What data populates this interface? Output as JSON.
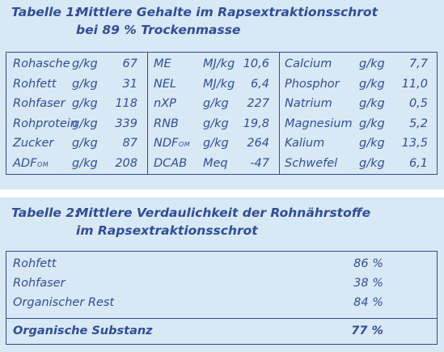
{
  "table1": {
    "label": "Tabelle 1:",
    "title_line1": "Mittlere Gehalte im Rapsextraktionsschrot",
    "title_line2": "bei 89 % Trockenmasse",
    "col1": [
      {
        "name": "Rohasche",
        "sub": "",
        "unit": "g/kg",
        "value": "67"
      },
      {
        "name": "Rohfett",
        "sub": "",
        "unit": "g/kg",
        "value": "31"
      },
      {
        "name": "Rohfaser",
        "sub": "",
        "unit": "g/kg",
        "value": "118"
      },
      {
        "name": "Rohprotein",
        "sub": "",
        "unit": "g/kg",
        "value": "339"
      },
      {
        "name": "Zucker",
        "sub": "",
        "unit": "g/kg",
        "value": "87"
      },
      {
        "name": "ADF",
        "sub": "OM",
        "unit": "g/kg",
        "value": "208"
      }
    ],
    "col2": [
      {
        "name": "ME",
        "sub": "",
        "unit": "MJ/kg",
        "value": "10,6"
      },
      {
        "name": "NEL",
        "sub": "",
        "unit": "MJ/kg",
        "value": "6,4"
      },
      {
        "name": "nXP",
        "sub": "",
        "unit": "g/kg",
        "value": "227"
      },
      {
        "name": "RNB",
        "sub": "",
        "unit": "g/kg",
        "value": "19,8"
      },
      {
        "name": "NDF",
        "sub": "OM",
        "unit": "g/kg",
        "value": "264"
      },
      {
        "name": "DCAB",
        "sub": "",
        "unit": "Meq",
        "value": "-47"
      }
    ],
    "col3": [
      {
        "name": "Calcium",
        "sub": "",
        "unit": "g/kg",
        "value": "7,7"
      },
      {
        "name": "Phosphor",
        "sub": "",
        "unit": "g/kg",
        "value": "11,0"
      },
      {
        "name": "Natrium",
        "sub": "",
        "unit": "g/kg",
        "value": "0,5"
      },
      {
        "name": "Magnesium",
        "sub": "",
        "unit": "g/kg",
        "value": "5,2"
      },
      {
        "name": "Kalium",
        "sub": "",
        "unit": "g/kg",
        "value": "13,5"
      },
      {
        "name": "Schwefel",
        "sub": "",
        "unit": "g/kg",
        "value": "6,1"
      }
    ]
  },
  "table2": {
    "label": "Tabelle 2:",
    "title_line1": "Mittlere Verdaulichkeit der Rohnährstoffe",
    "title_line2": "im Rapsextraktionsschrot",
    "rows": [
      {
        "name": "Rohfett",
        "value": "86 %"
      },
      {
        "name": "Rohfaser",
        "value": "38 %"
      },
      {
        "name": "Organischer Rest",
        "value": "84 %"
      }
    ],
    "total": {
      "name": "Organische Substanz",
      "value": "77 %"
    }
  },
  "colors": {
    "text": "#2f4e96",
    "band": "#d9e8f5",
    "background": "#ffffff"
  }
}
